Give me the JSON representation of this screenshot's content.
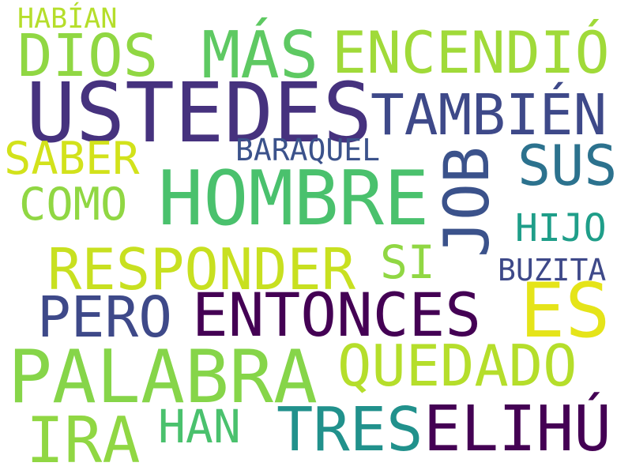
{
  "word_cloud": {
    "words": [
      {
        "id": "habian",
        "text": "HABÍAN",
        "color": "#b5de2b"
      },
      {
        "id": "dios",
        "text": "DIOS",
        "color": "#90d743"
      },
      {
        "id": "mas",
        "text": "MÁS",
        "color": "#5ec962"
      },
      {
        "id": "encendio",
        "text": "ENCENDIÓ",
        "color": "#a0da39"
      },
      {
        "id": "ustedes",
        "text": "USTEDES",
        "color": "#46327e"
      },
      {
        "id": "tambien",
        "text": "TAMBIÉN",
        "color": "#3e4989"
      },
      {
        "id": "saber",
        "text": "SABER",
        "color": "#d2e21b"
      },
      {
        "id": "baraquel",
        "text": "BARAQUEL",
        "color": "#3b528b"
      },
      {
        "id": "sus",
        "text": "SUS",
        "color": "#2c728e"
      },
      {
        "id": "como",
        "text": "COMO",
        "color": "#90d743"
      },
      {
        "id": "hombre",
        "text": "HOMBRE",
        "color": "#4ac16d"
      },
      {
        "id": "job",
        "text": "JOB",
        "color": "#3b528b"
      },
      {
        "id": "hijo",
        "text": "HIJO",
        "color": "#1f9e89"
      },
      {
        "id": "responder",
        "text": "RESPONDER",
        "color": "#c8e020"
      },
      {
        "id": "si",
        "text": "SI",
        "color": "#90d743"
      },
      {
        "id": "buzita",
        "text": "BUZITA",
        "color": "#3e4989"
      },
      {
        "id": "pero",
        "text": "PERO",
        "color": "#3e4989"
      },
      {
        "id": "entonces",
        "text": "ENTONCES",
        "color": "#440154"
      },
      {
        "id": "es",
        "text": "ES",
        "color": "#e5e419"
      },
      {
        "id": "palabra",
        "text": "PALABRA",
        "color": "#86d549"
      },
      {
        "id": "quedado",
        "text": "QUEDADO",
        "color": "#b5de2b"
      },
      {
        "id": "ira",
        "text": "IRA",
        "color": "#90d743"
      },
      {
        "id": "han",
        "text": "HAN",
        "color": "#4ac16d"
      },
      {
        "id": "tres",
        "text": "TRES",
        "color": "#21918c"
      },
      {
        "id": "elihu",
        "text": "ELIHÚ",
        "color": "#440154"
      }
    ]
  }
}
